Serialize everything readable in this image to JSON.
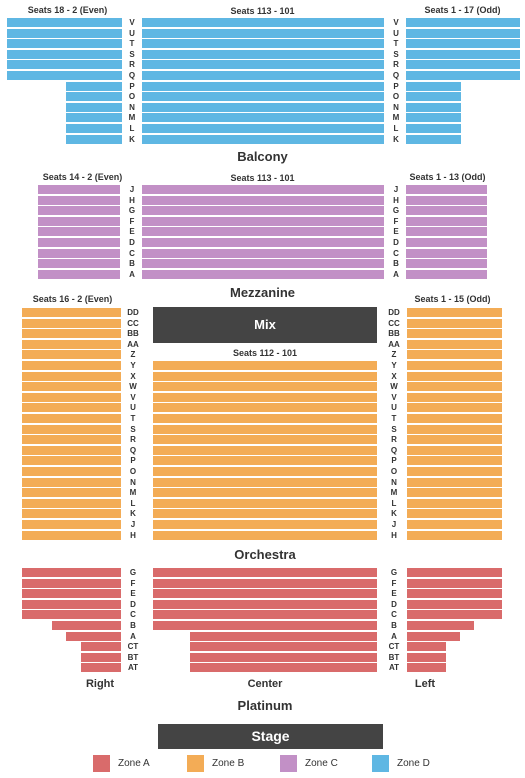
{
  "colors": {
    "zone_a": "#d96b6b",
    "zone_b": "#f3ac56",
    "zone_c": "#c290c6",
    "zone_d": "#5fb7e3",
    "dark_box": "#444444"
  },
  "balcony": {
    "name": "Balcony",
    "left_header": "Seats 18 - 2 (Even)",
    "center_header": "Seats 113 - 101",
    "right_header": "Seats 1 - 17 (Odd)",
    "rows": [
      "V",
      "U",
      "T",
      "S",
      "R",
      "Q",
      "P",
      "O",
      "N",
      "M",
      "L",
      "K"
    ],
    "zone": "D"
  },
  "mezzanine": {
    "name": "Mezzanine",
    "left_header": "Seats 14 - 2 (Even)",
    "center_header": "Seats 113 - 101",
    "right_header": "Seats 1 - 13 (Odd)",
    "rows": [
      "J",
      "H",
      "G",
      "F",
      "E",
      "D",
      "C",
      "B",
      "A"
    ],
    "zone": "C"
  },
  "orchestra": {
    "name": "Orchestra",
    "left_header": "Seats 16 - 2 (Even)",
    "center_header": "Seats 112 - 101",
    "right_header": "Seats 1 - 15 (Odd)",
    "mix_label": "Mix",
    "rows": [
      "DD",
      "CC",
      "BB",
      "AA",
      "Z",
      "Y",
      "X",
      "W",
      "V",
      "U",
      "T",
      "S",
      "R",
      "Q",
      "P",
      "O",
      "N",
      "M",
      "L",
      "K",
      "J",
      "H"
    ],
    "zone": "B"
  },
  "platinum": {
    "name": "Platinum",
    "rows": [
      "G",
      "F",
      "E",
      "D",
      "C",
      "B",
      "A",
      "CT",
      "BT",
      "AT"
    ],
    "right_label": "Right",
    "center_label": "Center",
    "left_label": "Left",
    "zone": "A"
  },
  "stage": {
    "label": "Stage"
  },
  "legend": [
    {
      "label": "Zone A",
      "color": "#d96b6b"
    },
    {
      "label": "Zone B",
      "color": "#f3ac56"
    },
    {
      "label": "Zone C",
      "color": "#c290c6"
    },
    {
      "label": "Zone D",
      "color": "#5fb7e3"
    }
  ]
}
